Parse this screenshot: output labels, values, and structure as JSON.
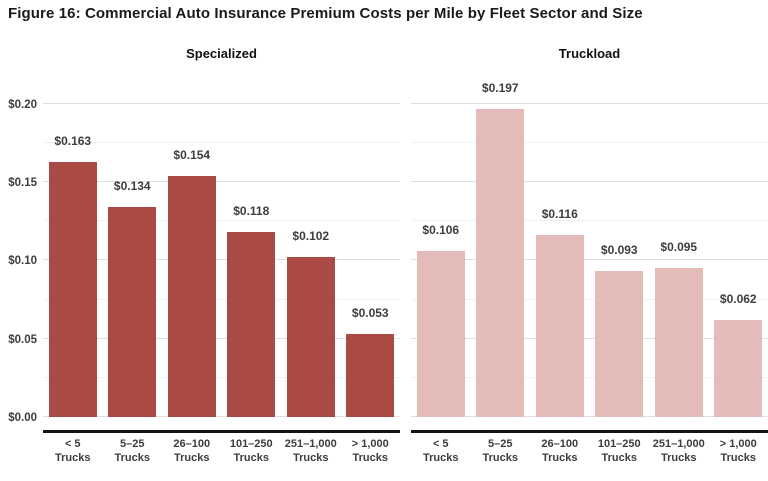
{
  "figure": {
    "title": "Figure 16: Commercial Auto Insurance Premium Costs per Mile by Fleet Sector and Size"
  },
  "chart_data": {
    "type": "bar",
    "layout": "two-panel-faceted",
    "title": "Figure 16: Commercial Auto Insurance Premium Costs per Mile by Fleet Sector and Size",
    "xlabel": "",
    "ylabel": "",
    "categories": [
      "< 5",
      "5–25",
      "26–100",
      "101–250",
      "251–1,000",
      "> 1,000"
    ],
    "category_unit": "Trucks",
    "series": [
      {
        "name": "Specialized",
        "color": "#aa4a45",
        "values": [
          0.163,
          0.134,
          0.154,
          0.118,
          0.102,
          0.053
        ],
        "labels": [
          "$0.163",
          "$0.134",
          "$0.154",
          "$0.118",
          "$0.102",
          "$0.053"
        ]
      },
      {
        "name": "Truckload",
        "color": "#e3bcba",
        "values": [
          0.106,
          0.197,
          0.116,
          0.093,
          0.095,
          0.062
        ],
        "labels": [
          "$0.106",
          "$0.197",
          "$0.116",
          "$0.093",
          "$0.095",
          "$0.062"
        ]
      }
    ],
    "ylim": [
      0,
      0.212
    ],
    "yticks": [
      {
        "value": 0.0,
        "label": "$0.00"
      },
      {
        "value": 0.05,
        "label": "$0.05"
      },
      {
        "value": 0.1,
        "label": "$0.10"
      },
      {
        "value": 0.15,
        "label": "$0.15"
      },
      {
        "value": 0.2,
        "label": "$0.20"
      }
    ],
    "minor_gridlines": [
      0.025,
      0.075,
      0.125,
      0.175
    ],
    "grid": "horizontal",
    "legend": "none"
  },
  "colors": {
    "specialized_bar": "#aa4a45",
    "truckload_bar": "#e3bcba",
    "major_gridline": "#e0e0e0",
    "minor_gridline": "#f1f1f1",
    "axis_line": "#141414",
    "tick_text": "#3d3d3d",
    "title_text": "#1a1a1a"
  }
}
